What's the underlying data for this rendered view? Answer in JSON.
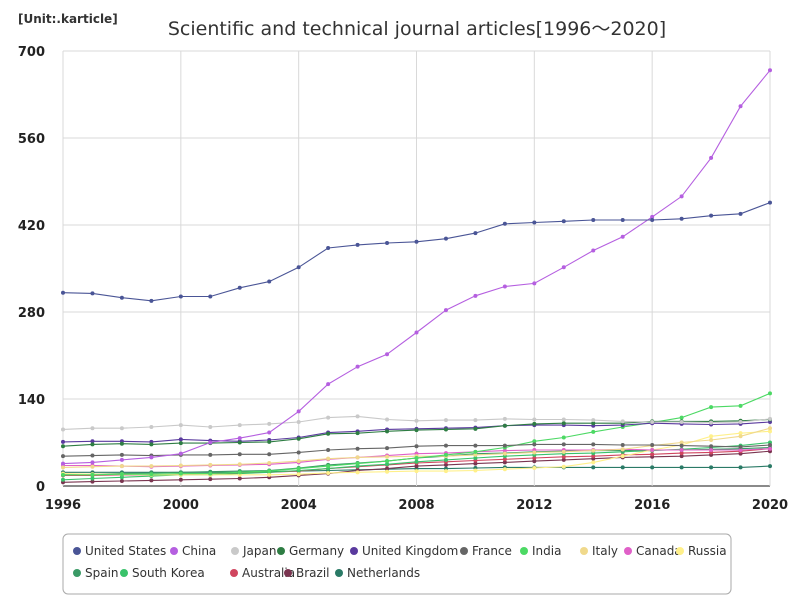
{
  "chart_data": {
    "type": "line",
    "title": "Scientific and technical journal articles[1996～2020]",
    "unit_label": "[Unit:.karticle]",
    "xlabel": "",
    "ylabel": "",
    "xlim": [
      1996,
      2020
    ],
    "ylim": [
      0,
      700
    ],
    "x_ticks": [
      1996,
      2000,
      2004,
      2008,
      2012,
      2016,
      2020
    ],
    "y_ticks": [
      0,
      140,
      280,
      420,
      560,
      700
    ],
    "grid": true,
    "legend_position": "bottom",
    "x": [
      1996,
      1997,
      1998,
      1999,
      2000,
      2001,
      2002,
      2003,
      2004,
      2005,
      2006,
      2007,
      2008,
      2009,
      2010,
      2011,
      2012,
      2013,
      2014,
      2015,
      2016,
      2017,
      2018,
      2019,
      2020
    ],
    "series": [
      {
        "name": "United States",
        "color": "#4a5596",
        "values": [
          311,
          310,
          303,
          298,
          305,
          305,
          319,
          329,
          352,
          383,
          388,
          391,
          393,
          398,
          407,
          422,
          424,
          426,
          428,
          428,
          428,
          430,
          435,
          438,
          456
        ]
      },
      {
        "name": "China",
        "color": "#b55fe0",
        "values": [
          36,
          38,
          42,
          46,
          52,
          70,
          77,
          86,
          120,
          164,
          192,
          212,
          247,
          283,
          306,
          321,
          326,
          352,
          379,
          401,
          433,
          466,
          528,
          611,
          669
        ]
      },
      {
        "name": "Japan",
        "color": "#c9c9c9",
        "values": [
          91,
          93,
          93,
          95,
          98,
          95,
          98,
          100,
          103,
          110,
          112,
          107,
          105,
          106,
          106,
          108,
          107,
          107,
          106,
          104,
          103,
          103,
          102,
          103,
          108
        ]
      },
      {
        "name": "Germany",
        "color": "#2e7d43",
        "values": [
          64,
          67,
          68,
          67,
          69,
          69,
          70,
          71,
          76,
          84,
          85,
          88,
          90,
          91,
          92,
          97,
          100,
          101,
          101,
          101,
          104,
          104,
          104,
          105,
          107
        ]
      },
      {
        "name": "United Kingdom",
        "color": "#5a3a9e",
        "values": [
          71,
          72,
          72,
          71,
          75,
          73,
          72,
          74,
          78,
          86,
          88,
          91,
          92,
          93,
          94,
          97,
          98,
          98,
          97,
          98,
          101,
          100,
          99,
          100,
          103
        ]
      },
      {
        "name": "France",
        "color": "#666666",
        "values": [
          48,
          49,
          50,
          49,
          50,
          50,
          51,
          51,
          54,
          58,
          60,
          61,
          64,
          65,
          65,
          65,
          67,
          67,
          67,
          66,
          66,
          65,
          64,
          63,
          66
        ]
      },
      {
        "name": "India",
        "color": "#4cd964",
        "values": [
          18,
          18,
          19,
          19,
          20,
          20,
          22,
          24,
          28,
          32,
          36,
          40,
          45,
          50,
          55,
          62,
          72,
          78,
          87,
          95,
          102,
          110,
          127,
          129,
          149
        ]
      },
      {
        "name": "Italy",
        "color": "#f0d98c",
        "values": [
          30,
          31,
          32,
          32,
          33,
          34,
          35,
          37,
          40,
          44,
          46,
          47,
          48,
          48,
          50,
          52,
          54,
          55,
          57,
          59,
          65,
          70,
          74,
          80,
          93
        ]
      },
      {
        "name": "Canada",
        "color": "#e060c8",
        "values": [
          33,
          33,
          32,
          31,
          32,
          33,
          34,
          35,
          38,
          43,
          46,
          49,
          52,
          53,
          55,
          57,
          58,
          58,
          58,
          59,
          58,
          58,
          58,
          58,
          60
        ]
      },
      {
        "name": "Russia",
        "color": "#fff08a",
        "values": [
          20,
          19,
          19,
          18,
          18,
          18,
          18,
          18,
          19,
          21,
          22,
          23,
          24,
          24,
          25,
          27,
          29,
          31,
          38,
          48,
          58,
          66,
          80,
          85,
          88
        ]
      },
      {
        "name": "Spain",
        "color": "#3a9a66",
        "values": [
          18,
          19,
          20,
          21,
          22,
          23,
          24,
          25,
          29,
          34,
          37,
          40,
          45,
          48,
          52,
          53,
          55,
          56,
          57,
          57,
          58,
          58,
          59,
          60,
          62
        ]
      },
      {
        "name": "South Korea",
        "color": "#39c26a",
        "values": [
          10,
          12,
          14,
          16,
          18,
          18,
          20,
          22,
          25,
          28,
          32,
          35,
          39,
          42,
          45,
          48,
          50,
          52,
          53,
          55,
          57,
          59,
          62,
          65,
          70
        ]
      },
      {
        "name": "Australia",
        "color": "#d0455f",
        "values": [
          17,
          17,
          18,
          18,
          19,
          20,
          21,
          22,
          24,
          28,
          31,
          34,
          37,
          39,
          41,
          43,
          45,
          47,
          48,
          50,
          51,
          53,
          54,
          56,
          60
        ]
      },
      {
        "name": "Brazil",
        "color": "#7a3550",
        "values": [
          6,
          7,
          8,
          9,
          10,
          11,
          12,
          14,
          17,
          20,
          25,
          28,
          32,
          34,
          36,
          38,
          40,
          42,
          44,
          46,
          47,
          48,
          50,
          52,
          56
        ]
      },
      {
        "name": "Netherlands",
        "color": "#2a7a66",
        "values": [
          22,
          22,
          22,
          22,
          22,
          22,
          22,
          23,
          24,
          25,
          26,
          27,
          28,
          28,
          29,
          30,
          30,
          30,
          30,
          30,
          30,
          30,
          30,
          30,
          32
        ]
      }
    ]
  }
}
